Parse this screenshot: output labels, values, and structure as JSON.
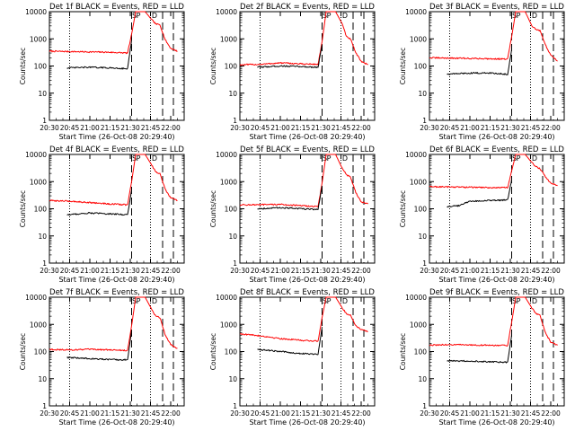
{
  "window": {
    "title": ""
  },
  "chart_data": [
    {
      "type": "line",
      "title": "Det 1f BLACK = Events, RED = LLD",
      "xlabel": "Start Time (26-Oct-08 20:29:40)",
      "ylabel": "Counts/sec",
      "y_scale": "log",
      "ylim": [
        1,
        10000
      ],
      "xlim": [
        "20:30",
        "22:10"
      ],
      "x_ticks": [
        "20:30",
        "20:45",
        "21:00",
        "21:15",
        "21:30",
        "21:45",
        "22:00"
      ],
      "y_ticks": [
        "1",
        "10",
        "100",
        "1000",
        "10000"
      ],
      "markers": [
        "S",
        "P",
        "D"
      ],
      "grid": false,
      "colors": {
        "events": "#000000",
        "lld": "#ff0000"
      },
      "series": [
        {
          "name": "LLD",
          "color": "#ff0000",
          "x": [
            "20:30",
            "20:45",
            "21:00",
            "21:15",
            "21:28",
            "21:31",
            "21:34",
            "21:37",
            "21:41",
            "21:46",
            "21:49",
            "21:52",
            "21:56",
            "22:00",
            "22:05"
          ],
          "y": [
            350,
            340,
            330,
            320,
            300,
            1500,
            10000,
            10000,
            10000,
            5000,
            3500,
            3300,
            900,
            450,
            350
          ]
        },
        {
          "name": "Events",
          "color": "#000000",
          "x": [
            "20:43",
            "21:00",
            "21:15",
            "21:28",
            "21:31"
          ],
          "y": [
            85,
            90,
            85,
            80,
            900
          ]
        }
      ]
    },
    {
      "type": "line",
      "title": "Det 2f BLACK = Events, RED = LLD",
      "xlabel": "Start Time (26-Oct-08 20:29:40)",
      "ylabel": "Counts/sec",
      "y_scale": "log",
      "ylim": [
        1,
        10000
      ],
      "xlim": [
        "20:30",
        "22:10"
      ],
      "x_ticks": [
        "20:30",
        "20:45",
        "21:00",
        "21:15",
        "21:30",
        "21:45",
        "22:00"
      ],
      "y_ticks": [
        "1",
        "10",
        "100",
        "1000",
        "10000"
      ],
      "markers": [
        "S",
        "P",
        "D"
      ],
      "grid": false,
      "colors": {
        "events": "#000000",
        "lld": "#ff0000"
      },
      "series": [
        {
          "name": "LLD",
          "color": "#ff0000",
          "x": [
            "20:30",
            "20:45",
            "21:00",
            "21:15",
            "21:28",
            "21:31",
            "21:34",
            "21:37",
            "21:41",
            "21:46",
            "21:49",
            "21:52",
            "21:56",
            "22:00",
            "22:05"
          ],
          "y": [
            110,
            115,
            130,
            120,
            115,
            800,
            10000,
            10000,
            10000,
            3500,
            1200,
            1000,
            300,
            150,
            110
          ]
        },
        {
          "name": "Events",
          "color": "#000000",
          "x": [
            "20:43",
            "21:00",
            "21:15",
            "21:28",
            "21:31"
          ],
          "y": [
            90,
            100,
            95,
            90,
            600
          ]
        }
      ]
    },
    {
      "type": "line",
      "title": "Det 3f BLACK = Events, RED = LLD",
      "xlabel": "Start Time (26-Oct-08 20:29:40)",
      "ylabel": "Counts/sec",
      "y_scale": "log",
      "ylim": [
        1,
        10000
      ],
      "xlim": [
        "20:30",
        "22:10"
      ],
      "x_ticks": [
        "20:30",
        "20:45",
        "21:00",
        "21:15",
        "21:30",
        "21:45",
        "22:00"
      ],
      "y_ticks": [
        "1",
        "10",
        "100",
        "1000",
        "10000"
      ],
      "markers": [
        "S",
        "P",
        "D"
      ],
      "grid": false,
      "colors": {
        "events": "#000000",
        "lld": "#ff0000"
      },
      "series": [
        {
          "name": "LLD",
          "color": "#ff0000",
          "x": [
            "20:30",
            "20:45",
            "21:00",
            "21:15",
            "21:28",
            "21:31",
            "21:34",
            "21:37",
            "21:41",
            "21:46",
            "21:49",
            "21:52",
            "21:56",
            "22:00",
            "22:05"
          ],
          "y": [
            200,
            195,
            190,
            185,
            180,
            1200,
            10000,
            10000,
            10000,
            3000,
            2200,
            2000,
            600,
            250,
            150
          ]
        },
        {
          "name": "Events",
          "color": "#000000",
          "x": [
            "20:43",
            "21:00",
            "21:15",
            "21:28",
            "21:31"
          ],
          "y": [
            50,
            55,
            55,
            50,
            400
          ]
        }
      ]
    },
    {
      "type": "line",
      "title": "Det 4f BLACK = Events, RED = LLD",
      "xlabel": "Start Time (26-Oct-08 20:29:40)",
      "ylabel": "Counts/sec",
      "y_scale": "log",
      "ylim": [
        1,
        10000
      ],
      "xlim": [
        "20:30",
        "22:10"
      ],
      "x_ticks": [
        "20:30",
        "20:45",
        "21:00",
        "21:15",
        "21:30",
        "21:45",
        "22:00"
      ],
      "y_ticks": [
        "1",
        "10",
        "100",
        "1000",
        "10000"
      ],
      "markers": [
        "S",
        "P",
        "D"
      ],
      "grid": false,
      "colors": {
        "events": "#000000",
        "lld": "#ff0000"
      },
      "series": [
        {
          "name": "LLD",
          "color": "#ff0000",
          "x": [
            "20:30",
            "20:45",
            "21:00",
            "21:15",
            "21:28",
            "21:31",
            "21:34",
            "21:37",
            "21:41",
            "21:46",
            "21:49",
            "21:52",
            "21:56",
            "22:00",
            "22:05"
          ],
          "y": [
            200,
            190,
            170,
            150,
            140,
            1000,
            10000,
            10000,
            10000,
            4000,
            2200,
            2000,
            500,
            250,
            200
          ]
        },
        {
          "name": "Events",
          "color": "#000000",
          "x": [
            "20:43",
            "21:00",
            "21:15",
            "21:28",
            "21:31"
          ],
          "y": [
            60,
            70,
            65,
            60,
            500
          ]
        }
      ]
    },
    {
      "type": "line",
      "title": "Det 5f BLACK = Events, RED = LLD",
      "xlabel": "Start Time (26-Oct-08 20:29:40)",
      "ylabel": "Counts/sec",
      "y_scale": "log",
      "ylim": [
        1,
        10000
      ],
      "xlim": [
        "20:30",
        "22:10"
      ],
      "x_ticks": [
        "20:30",
        "20:45",
        "21:00",
        "21:15",
        "21:30",
        "21:45",
        "22:00"
      ],
      "y_ticks": [
        "1",
        "10",
        "100",
        "1000",
        "10000"
      ],
      "markers": [
        "S",
        "P",
        "D"
      ],
      "grid": false,
      "colors": {
        "events": "#000000",
        "lld": "#ff0000"
      },
      "series": [
        {
          "name": "LLD",
          "color": "#ff0000",
          "x": [
            "20:30",
            "20:45",
            "21:00",
            "21:15",
            "21:28",
            "21:31",
            "21:34",
            "21:37",
            "21:41",
            "21:46",
            "21:49",
            "21:52",
            "21:56",
            "22:00",
            "22:05"
          ],
          "y": [
            140,
            140,
            145,
            130,
            120,
            900,
            10000,
            10000,
            10000,
            3000,
            1800,
            1500,
            400,
            180,
            150
          ]
        },
        {
          "name": "Events",
          "color": "#000000",
          "x": [
            "20:43",
            "21:00",
            "21:15",
            "21:28",
            "21:31"
          ],
          "y": [
            100,
            110,
            100,
            95,
            700
          ]
        }
      ]
    },
    {
      "type": "line",
      "title": "Det 6f BLACK = Events, RED = LLD",
      "xlabel": "Start Time (26-Oct-08 20:29:40)",
      "ylabel": "Counts/sec",
      "y_scale": "log",
      "ylim": [
        1,
        10000
      ],
      "xlim": [
        "20:30",
        "22:10"
      ],
      "x_ticks": [
        "20:30",
        "20:45",
        "21:00",
        "21:15",
        "21:30",
        "21:45",
        "22:00"
      ],
      "y_ticks": [
        "1",
        "10",
        "100",
        "1000",
        "10000"
      ],
      "markers": [
        "S",
        "P",
        "D"
      ],
      "grid": false,
      "colors": {
        "events": "#000000",
        "lld": "#ff0000"
      },
      "series": [
        {
          "name": "LLD",
          "color": "#ff0000",
          "x": [
            "20:30",
            "20:45",
            "21:00",
            "21:15",
            "21:28",
            "21:31",
            "21:34",
            "21:37",
            "21:41",
            "21:46",
            "21:49",
            "21:52",
            "21:56",
            "22:00",
            "22:05"
          ],
          "y": [
            650,
            640,
            620,
            600,
            600,
            2500,
            10000,
            10000,
            10000,
            5000,
            3500,
            3000,
            1500,
            900,
            700
          ]
        },
        {
          "name": "Events",
          "color": "#000000",
          "x": [
            "20:43",
            "20:52",
            "21:00",
            "21:15",
            "21:28",
            "21:31"
          ],
          "y": [
            120,
            130,
            190,
            200,
            210,
            1200
          ]
        }
      ]
    },
    {
      "type": "line",
      "title": "Det 7f BLACK = Events, RED = LLD",
      "xlabel": "Start Time (26-Oct-08 20:29:40)",
      "ylabel": "Counts/sec",
      "y_scale": "log",
      "ylim": [
        1,
        10000
      ],
      "xlim": [
        "20:30",
        "22:10"
      ],
      "x_ticks": [
        "20:30",
        "20:45",
        "21:00",
        "21:15",
        "21:30",
        "21:45",
        "22:00"
      ],
      "y_ticks": [
        "1",
        "10",
        "100",
        "1000",
        "10000"
      ],
      "markers": [
        "S",
        "P",
        "D"
      ],
      "grid": false,
      "colors": {
        "events": "#000000",
        "lld": "#ff0000"
      },
      "series": [
        {
          "name": "LLD",
          "color": "#ff0000",
          "x": [
            "20:30",
            "20:45",
            "21:00",
            "21:15",
            "21:28",
            "21:31",
            "21:34",
            "21:37",
            "21:41",
            "21:46",
            "21:49",
            "21:52",
            "21:56",
            "22:00",
            "22:05"
          ],
          "y": [
            120,
            115,
            120,
            115,
            110,
            900,
            10000,
            10000,
            10000,
            3500,
            2000,
            1800,
            400,
            180,
            130
          ]
        },
        {
          "name": "Events",
          "color": "#000000",
          "x": [
            "20:43",
            "21:00",
            "21:15",
            "21:28",
            "21:31"
          ],
          "y": [
            60,
            55,
            50,
            50,
            600
          ]
        }
      ]
    },
    {
      "type": "line",
      "title": "Det 8f BLACK = Events, RED = LLD",
      "xlabel": "Start Time (26-Oct-08 20:29:40)",
      "ylabel": "Counts/sec",
      "y_scale": "log",
      "ylim": [
        1,
        10000
      ],
      "xlim": [
        "20:30",
        "22:10"
      ],
      "x_ticks": [
        "20:30",
        "20:45",
        "21:00",
        "21:15",
        "21:30",
        "21:45",
        "22:00"
      ],
      "y_ticks": [
        "1",
        "10",
        "100",
        "1000",
        "10000"
      ],
      "markers": [
        "S",
        "P",
        "D"
      ],
      "grid": false,
      "colors": {
        "events": "#000000",
        "lld": "#ff0000"
      },
      "series": [
        {
          "name": "LLD",
          "color": "#ff0000",
          "x": [
            "20:30",
            "20:45",
            "21:00",
            "21:15",
            "21:28",
            "21:31",
            "21:34",
            "21:37",
            "21:41",
            "21:46",
            "21:49",
            "21:52",
            "21:56",
            "22:00",
            "22:05"
          ],
          "y": [
            450,
            380,
            300,
            260,
            240,
            1800,
            10000,
            10000,
            10000,
            4000,
            2500,
            2200,
            900,
            650,
            550
          ]
        },
        {
          "name": "Events",
          "color": "#000000",
          "x": [
            "20:43",
            "21:00",
            "21:15",
            "21:28",
            "21:31"
          ],
          "y": [
            120,
            100,
            85,
            80,
            800
          ]
        }
      ]
    },
    {
      "type": "line",
      "title": "Det 9f BLACK = Events, RED = LLD",
      "xlabel": "Start Time (26-Oct-08 20:29:40)",
      "ylabel": "Counts/sec",
      "y_scale": "log",
      "ylim": [
        1,
        10000
      ],
      "xlim": [
        "20:30",
        "22:10"
      ],
      "x_ticks": [
        "20:30",
        "20:45",
        "21:00",
        "21:15",
        "21:30",
        "21:45",
        "22:00"
      ],
      "y_ticks": [
        "1",
        "10",
        "100",
        "1000",
        "10000"
      ],
      "markers": [
        "S",
        "P",
        "D"
      ],
      "grid": false,
      "colors": {
        "events": "#000000",
        "lld": "#ff0000"
      },
      "series": [
        {
          "name": "LLD",
          "color": "#ff0000",
          "x": [
            "20:30",
            "20:45",
            "21:00",
            "21:15",
            "21:28",
            "21:31",
            "21:34",
            "21:37",
            "21:41",
            "21:46",
            "21:49",
            "21:52",
            "21:56",
            "22:00",
            "22:05"
          ],
          "y": [
            170,
            180,
            175,
            170,
            165,
            1200,
            10000,
            10000,
            10000,
            4000,
            2500,
            2200,
            500,
            220,
            170
          ]
        },
        {
          "name": "Events",
          "color": "#000000",
          "x": [
            "20:43",
            "21:00",
            "21:15",
            "21:28",
            "21:31"
          ],
          "y": [
            45,
            45,
            42,
            40,
            400
          ]
        }
      ]
    }
  ]
}
